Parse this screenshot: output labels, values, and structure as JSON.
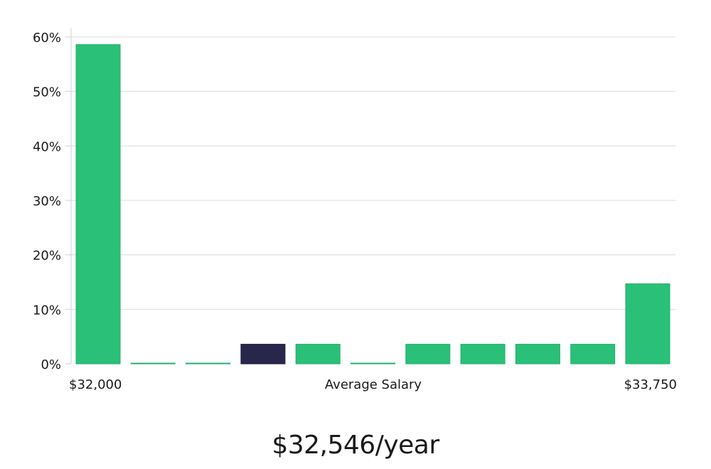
{
  "chart_data": {
    "type": "bar",
    "categories": [
      "1",
      "2",
      "3",
      "4",
      "5",
      "6",
      "7",
      "8",
      "9",
      "10",
      "11"
    ],
    "values": [
      58.6,
      0.1,
      0.1,
      3.6,
      3.6,
      0.1,
      3.6,
      3.6,
      3.6,
      3.6,
      14.7
    ],
    "highlight_index": 3,
    "ylim": [
      0,
      60
    ],
    "yticks": [
      0,
      10,
      20,
      30,
      40,
      50,
      60
    ],
    "ytick_labels": [
      "0%",
      "10%",
      "20%",
      "30%",
      "40%",
      "50%",
      "60%"
    ],
    "xlabel": "Average Salary",
    "x_min_label": "$32,000",
    "x_max_label": "$33,750",
    "grid": true,
    "colors": {
      "bar": "#2ac078",
      "highlight": "#29264b"
    }
  },
  "summary": {
    "salary_text": "$32,546/year"
  }
}
